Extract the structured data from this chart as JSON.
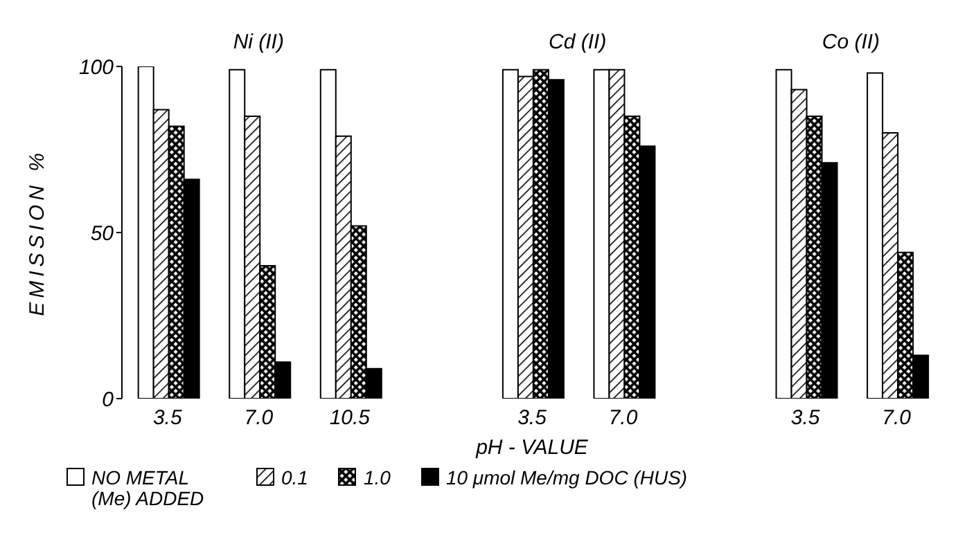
{
  "chart_data": {
    "type": "bar",
    "categories": [
      "3.5",
      "7.0",
      "10.5",
      null,
      "3.5",
      "7.0",
      null,
      "3.5",
      "7.0"
    ],
    "series": [
      {
        "name": "NO METAL (Me) ADDED",
        "color": "#ffffff",
        "values": [
          100,
          99,
          99,
          null,
          99,
          99,
          null,
          99,
          98
        ]
      },
      {
        "name": "0.1",
        "color": "#000000",
        "values": [
          87,
          85,
          79,
          null,
          97,
          99,
          null,
          93,
          80
        ]
      },
      {
        "name": "1.0",
        "color": "#000000",
        "values": [
          82,
          40,
          52,
          null,
          99,
          85,
          null,
          85,
          44
        ]
      },
      {
        "name": "10 μmol Me/mg DOC (HUS)",
        "color": "#000000",
        "values": [
          66,
          11,
          9,
          null,
          96,
          76,
          null,
          71,
          13
        ]
      }
    ],
    "ylim": [
      0,
      100
    ],
    "yticks": [
      0,
      50,
      100
    ],
    "ylabel": "EMISSION %",
    "xlabel": "pH - VALUE",
    "annotations": [
      "Ni (II)",
      "Cd (II)",
      "Co (II)"
    ],
    "legend": "bottom",
    "grid": false
  }
}
